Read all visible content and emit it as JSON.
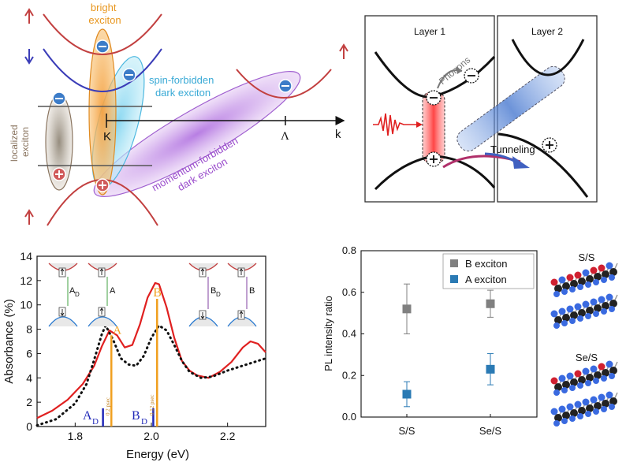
{
  "exciton_diagram": {
    "bright": "bright\nexciton",
    "spin_forbidden": "spin-forbidden\ndark exciton",
    "momentum_forbidden": "momentum-forbidden\ndark exciton",
    "localized": "localized\nexciton",
    "k_point": "K",
    "lambda_point": "Λ",
    "k_axis": "k",
    "colors": {
      "bright": "#f2a24a",
      "spin": "#4cc0e6",
      "momentum": "#b070d8",
      "localized": "#8a7560",
      "band": "#c24040",
      "blue_band": "#3b3db8"
    }
  },
  "tunneling_diagram": {
    "layer1": "Layer 1",
    "layer2": "Layer 2",
    "phonons": "Phonons",
    "tunneling": "Tunneling"
  },
  "absorbance_chart": {
    "chart_data": {
      "type": "line",
      "title": "",
      "xlabel": "Energy (eV)",
      "ylabel": "Absorbance (%)",
      "xlim": [
        1.7,
        2.3
      ],
      "ylim": [
        0,
        14
      ],
      "xticks": [
        "1.8",
        "2.0",
        "2.2"
      ],
      "yticks": [
        "0",
        "2",
        "4",
        "6",
        "8",
        "10",
        "12",
        "14"
      ],
      "series": [
        {
          "name": "red solid",
          "color": "#e02020",
          "x": [
            1.7,
            1.74,
            1.78,
            1.82,
            1.85,
            1.87,
            1.89,
            1.91,
            1.93,
            1.95,
            1.97,
            1.99,
            2.01,
            2.02,
            2.04,
            2.06,
            2.08,
            2.1,
            2.12,
            2.15,
            2.18,
            2.21,
            2.24,
            2.26,
            2.28,
            2.3
          ],
          "y": [
            0.7,
            1.3,
            2.2,
            3.5,
            5.0,
            6.6,
            7.9,
            7.5,
            6.5,
            6.7,
            8.4,
            10.6,
            11.8,
            11.7,
            9.8,
            7.3,
            5.4,
            4.6,
            4.2,
            4.0,
            4.5,
            5.3,
            6.5,
            7.0,
            6.8,
            6.1
          ]
        },
        {
          "name": "black dotted",
          "color": "#111111",
          "x": [
            1.7,
            1.75,
            1.8,
            1.83,
            1.85,
            1.87,
            1.88,
            1.9,
            1.92,
            1.94,
            1.96,
            1.98,
            2.0,
            2.02,
            2.04,
            2.06,
            2.08,
            2.1,
            2.13,
            2.16,
            2.2,
            2.25,
            2.3
          ],
          "y": [
            0.1,
            0.6,
            1.9,
            3.5,
            5.5,
            7.6,
            8.3,
            7.1,
            5.6,
            5.1,
            5.0,
            5.8,
            7.3,
            8.3,
            7.9,
            6.7,
            5.4,
            4.5,
            4.0,
            4.1,
            4.6,
            5.1,
            5.6
          ]
        }
      ],
      "lines": [
        {
          "label": "A",
          "x": 1.895,
          "h": 7.5,
          "color": "#f0a020"
        },
        {
          "label": "B",
          "x": 2.015,
          "h": 10.5,
          "color": "#f0a020"
        },
        {
          "label": "A_D",
          "x": 1.873,
          "h": 1.5,
          "color": "#2028b8"
        },
        {
          "label": "B_D",
          "x": 2.005,
          "h": 1.5,
          "color": "#2028b8"
        }
      ]
    },
    "line_label_a": "A",
    "line_label_b": "B",
    "line_label_ad_main": "A",
    "line_label_ad_sub": "D",
    "line_label_bd_main": "B",
    "line_label_bd_sub": "D",
    "time_a": "0.2 psec",
    "time_b": "0.12 psec",
    "inset_ad_main": "A",
    "inset_ad_sub": "D",
    "inset_a": "A",
    "inset_bd_main": "B",
    "inset_bd_sub": "D",
    "inset_b": "B"
  },
  "pl_chart": {
    "chart_data": {
      "type": "scatter",
      "ylabel": "PL intensity ratio",
      "categories": [
        "S/S",
        "Se/S"
      ],
      "ylim": [
        0,
        0.8
      ],
      "yticks": [
        "0.0",
        "0.2",
        "0.4",
        "0.6",
        "0.8"
      ],
      "series": [
        {
          "name": "B exciton",
          "color": "#808080",
          "values": [
            0.52,
            0.545
          ],
          "err": [
            0.12,
            0.065
          ]
        },
        {
          "name": "A exciton",
          "color": "#2a7ab4",
          "values": [
            0.11,
            0.23
          ],
          "err": [
            0.06,
            0.075
          ]
        }
      ]
    },
    "legend_b": "B exciton",
    "legend_a": "A exciton"
  },
  "structures": {
    "ss_label": "S/S",
    "ses_label": "Se/S"
  }
}
